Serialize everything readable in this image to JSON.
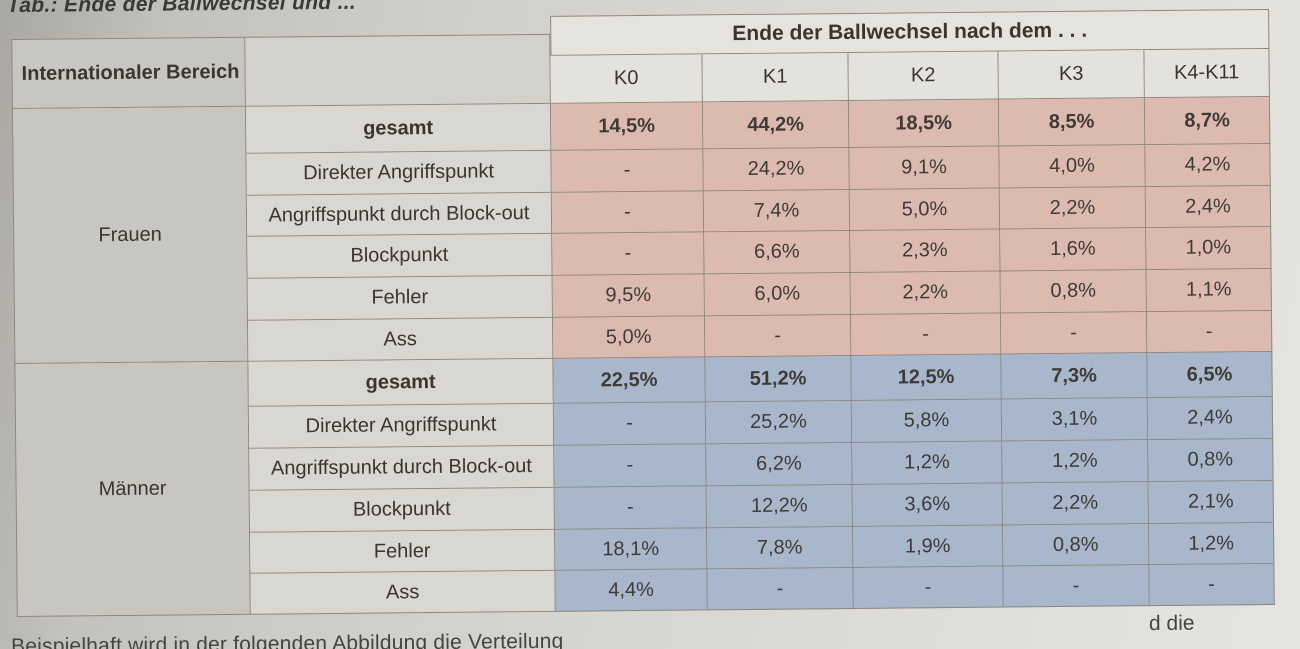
{
  "caption_top": "Tab.: Ende der Ballwechsel und ...",
  "caption_bottom": "Beispielhaft wird in der folgenden Abbildung die Verteilung",
  "caption_bottom_right": "d die",
  "colors": {
    "frauen_bg": "#ddbab0",
    "maenner_bg": "#a8b7cb",
    "header_bg": "#e4e2dd",
    "label_bg": "#d9d7d2",
    "grid_line": "#8d887f"
  },
  "table": {
    "corner_label": "Internationaler Bereich",
    "header_title": "Ende der Ballwechsel nach dem . . .",
    "columns": [
      "K0",
      "K1",
      "K2",
      "K3",
      "K4-K11"
    ],
    "groups": [
      {
        "name": "Frauen",
        "rows": [
          {
            "label": "gesamt",
            "bold": true,
            "values": [
              "14,5%",
              "44,2%",
              "18,5%",
              "8,5%",
              "8,7%"
            ]
          },
          {
            "label": "Direkter Angriffspunkt",
            "bold": false,
            "values": [
              "-",
              "24,2%",
              "9,1%",
              "4,0%",
              "4,2%"
            ]
          },
          {
            "label": "Angriffspunkt durch Block-out",
            "bold": false,
            "values": [
              "-",
              "7,4%",
              "5,0%",
              "2,2%",
              "2,4%"
            ]
          },
          {
            "label": "Blockpunkt",
            "bold": false,
            "values": [
              "-",
              "6,6%",
              "2,3%",
              "1,6%",
              "1,0%"
            ]
          },
          {
            "label": "Fehler",
            "bold": false,
            "values": [
              "9,5%",
              "6,0%",
              "2,2%",
              "0,8%",
              "1,1%"
            ]
          },
          {
            "label": "Ass",
            "bold": false,
            "values": [
              "5,0%",
              "-",
              "-",
              "-",
              "-"
            ]
          }
        ]
      },
      {
        "name": "Männer",
        "rows": [
          {
            "label": "gesamt",
            "bold": true,
            "values": [
              "22,5%",
              "51,2%",
              "12,5%",
              "7,3%",
              "6,5%"
            ]
          },
          {
            "label": "Direkter Angriffspunkt",
            "bold": false,
            "values": [
              "-",
              "25,2%",
              "5,8%",
              "3,1%",
              "2,4%"
            ]
          },
          {
            "label": "Angriffspunkt durch Block-out",
            "bold": false,
            "values": [
              "-",
              "6,2%",
              "1,2%",
              "1,2%",
              "0,8%"
            ]
          },
          {
            "label": "Blockpunkt",
            "bold": false,
            "values": [
              "-",
              "12,2%",
              "3,6%",
              "2,2%",
              "2,1%"
            ]
          },
          {
            "label": "Fehler",
            "bold": false,
            "values": [
              "18,1%",
              "7,8%",
              "1,9%",
              "0,8%",
              "1,2%"
            ]
          },
          {
            "label": "Ass",
            "bold": false,
            "values": [
              "4,4%",
              "-",
              "-",
              "-",
              "-"
            ]
          }
        ]
      }
    ]
  }
}
